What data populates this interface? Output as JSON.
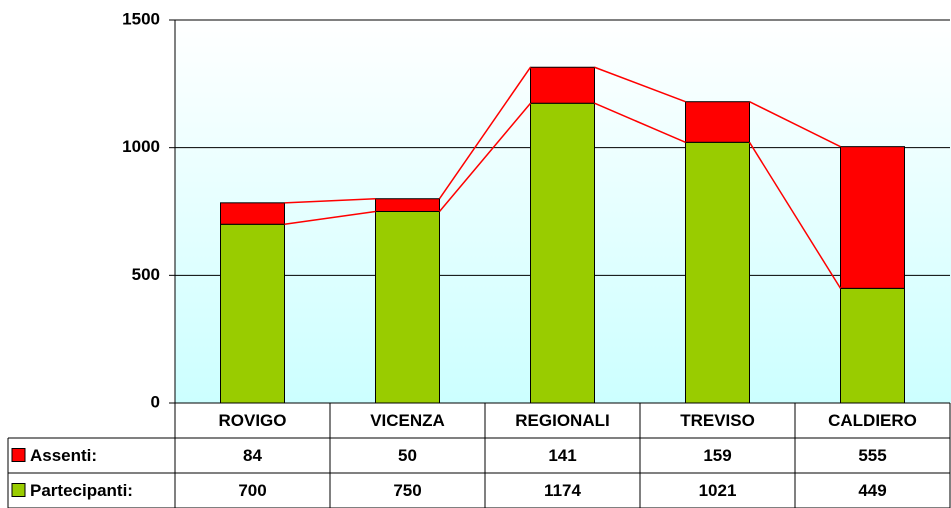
{
  "chart_data": {
    "type": "stacked_bar",
    "categories": [
      "ROVIGO",
      "VICENZA",
      "REGIONALI",
      "TREVISO",
      "CALDIERO"
    ],
    "series": [
      {
        "name": "Assenti:",
        "color": "#ff0000",
        "values": [
          84,
          50,
          141,
          159,
          555
        ]
      },
      {
        "name": "Partecipanti:",
        "color": "#99cc00",
        "values": [
          700,
          750,
          1174,
          1021,
          449
        ]
      }
    ],
    "ylim": [
      0,
      1500
    ],
    "yticks": [
      0,
      500,
      1000,
      1500
    ],
    "grid": true,
    "series_lines": true
  }
}
